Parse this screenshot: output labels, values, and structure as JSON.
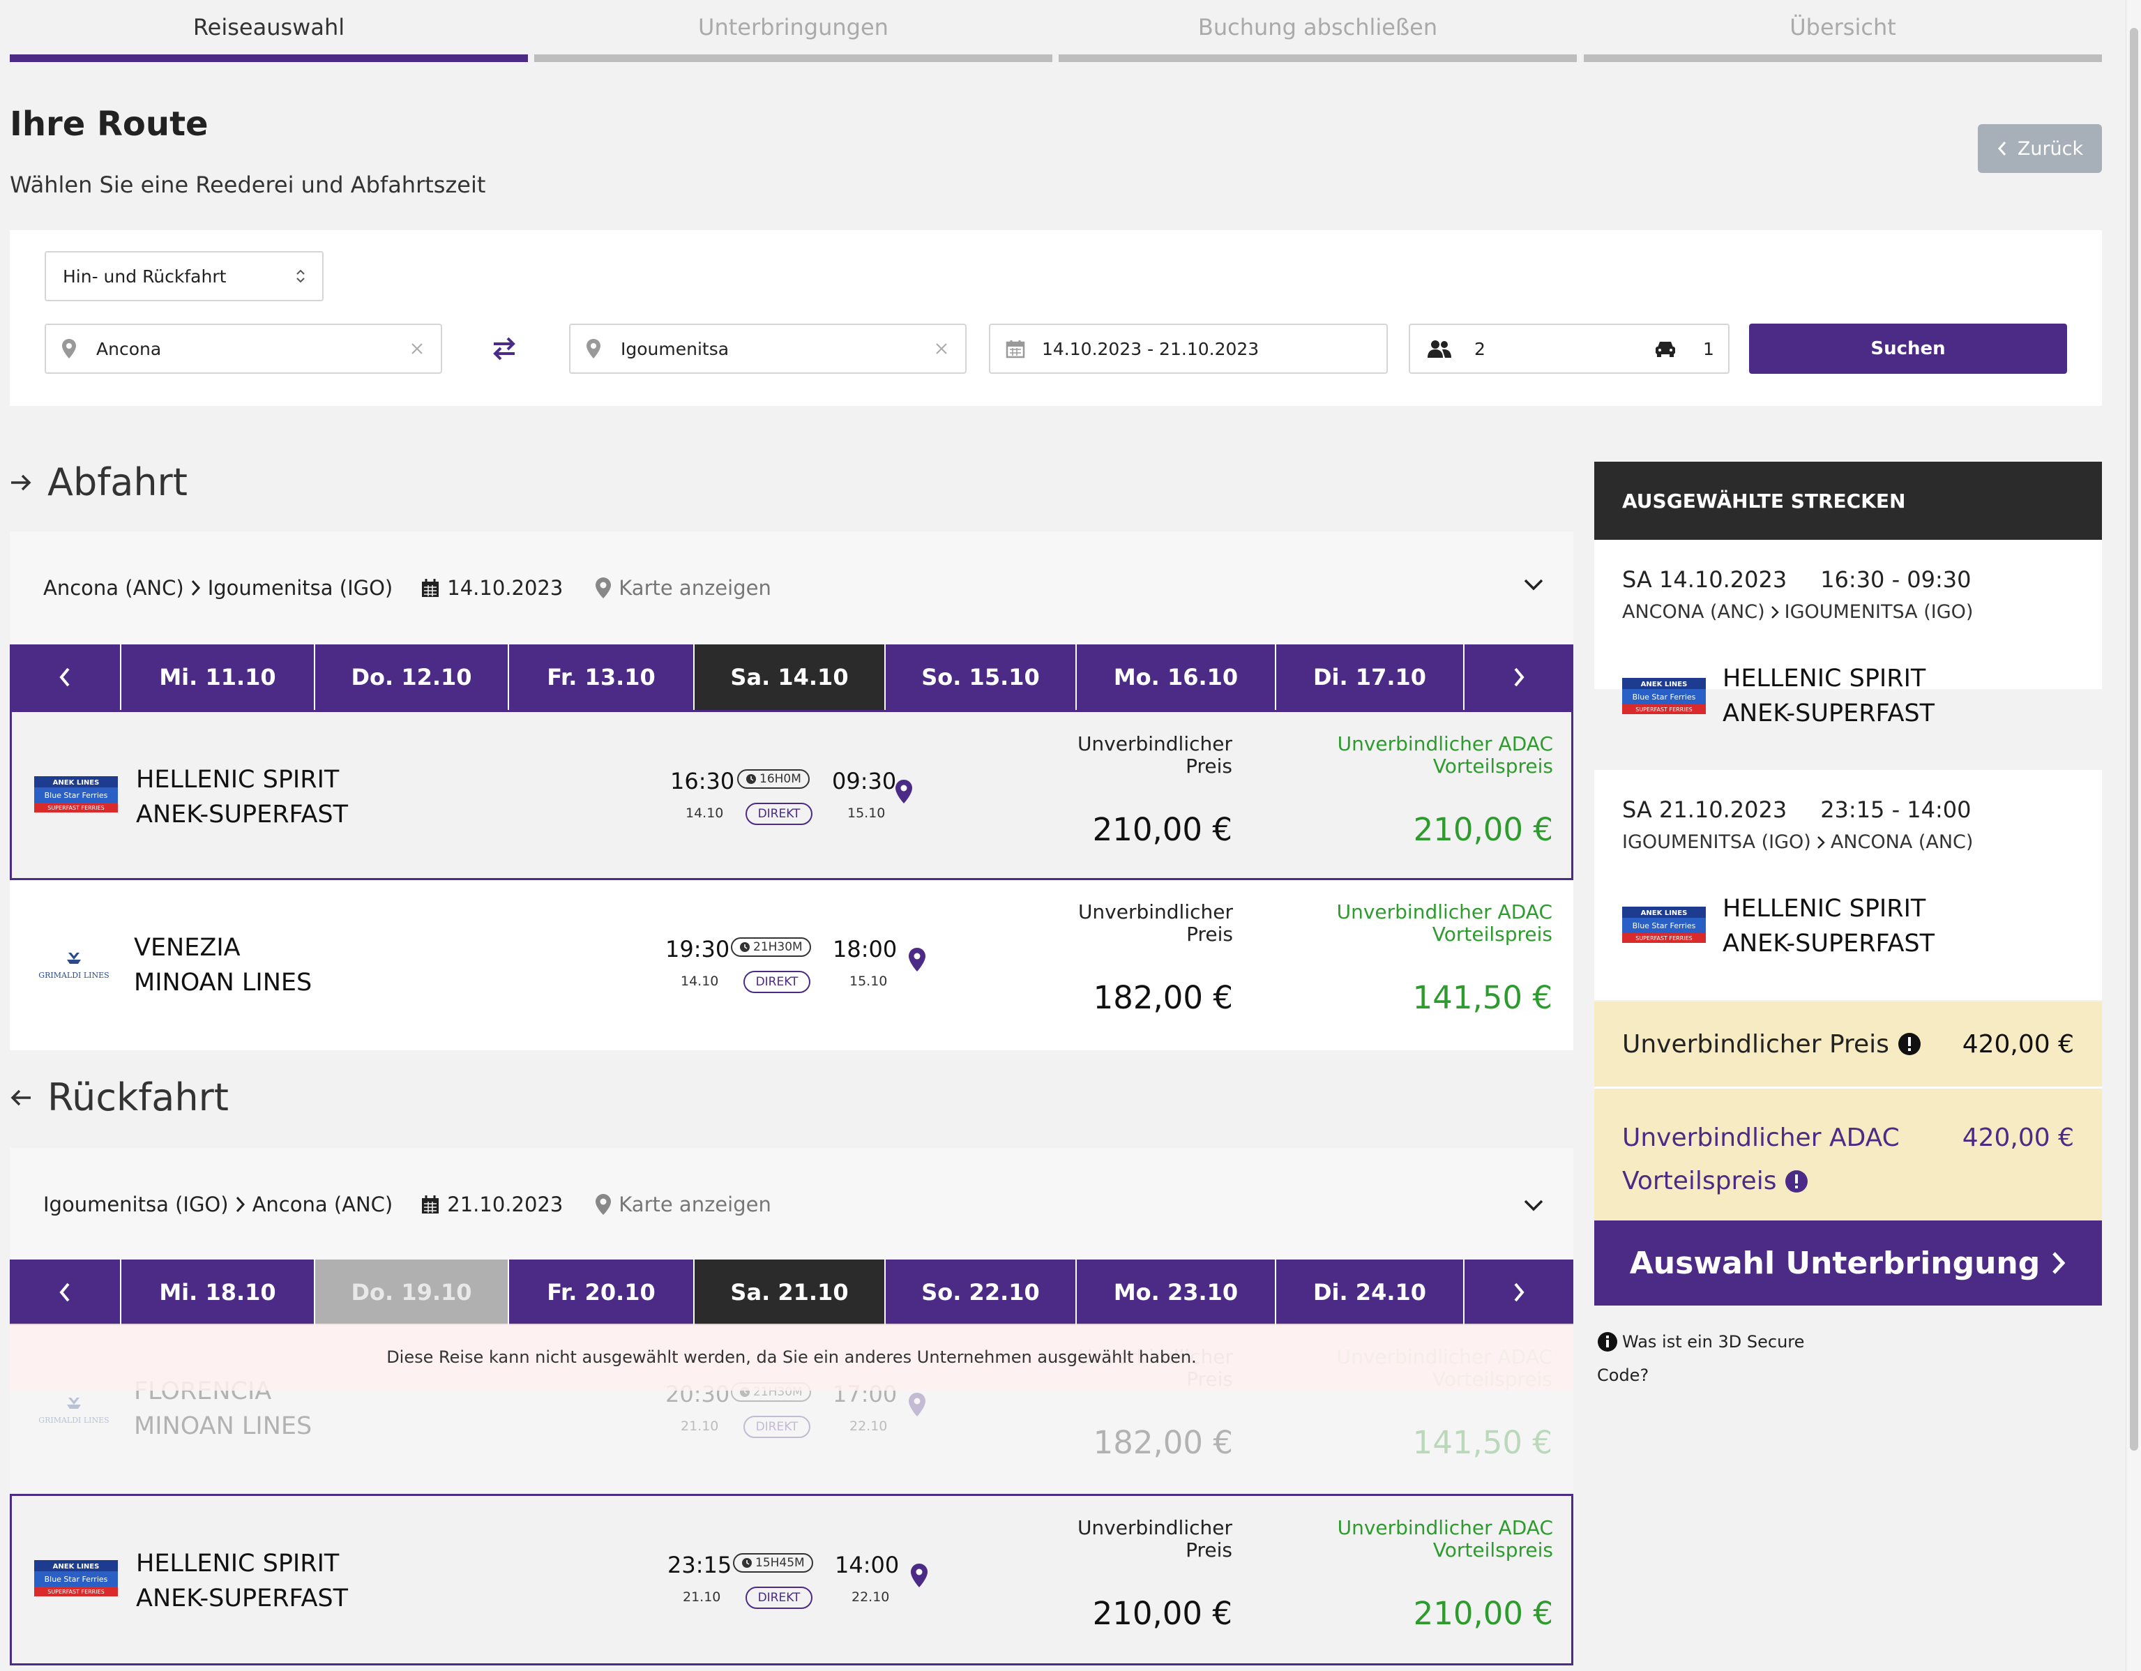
{
  "steps": [
    {
      "label": "Reiseauswahl",
      "active": true
    },
    {
      "label": "Unterbringungen",
      "active": false
    },
    {
      "label": "Buchung abschließen",
      "active": false
    },
    {
      "label": "Übersicht",
      "active": false
    }
  ],
  "page": {
    "title": "Ihre Route",
    "subtitle": "Wählen Sie eine Reederei und Abfahrtszeit",
    "back_label": "Zurück"
  },
  "search": {
    "trip_type": "Hin- und Rückfahrt",
    "from": "Ancona",
    "to": "Igoumenitsa",
    "dates": "14.10.2023 - 21.10.2023",
    "passengers": "2",
    "vehicles": "1",
    "submit_label": "Suchen"
  },
  "outbound": {
    "heading": "Abfahrt",
    "from": "Ancona (ANC)",
    "to": "Igoumenitsa (IGO)",
    "date": "14.10.2023",
    "map_label": "Karte anzeigen",
    "days": [
      {
        "label": "Mi. 11.10",
        "state": "normal"
      },
      {
        "label": "Do. 12.10",
        "state": "normal"
      },
      {
        "label": "Fr. 13.10",
        "state": "normal"
      },
      {
        "label": "Sa. 14.10",
        "state": "selected"
      },
      {
        "label": "So. 15.10",
        "state": "normal"
      },
      {
        "label": "Mo. 16.10",
        "state": "normal"
      },
      {
        "label": "Di. 17.10",
        "state": "normal"
      }
    ],
    "sailings": [
      {
        "ship": "HELLENIC SPIRIT",
        "operator": "ANEK-SUPERFAST",
        "dep": "16:30",
        "dep_date": "14.10",
        "duration": "16H0M",
        "arr": "09:30",
        "arr_date": "15.10",
        "type": "DIREKT",
        "price_label": "Unverbindlicher Preis",
        "price": "210,00 €",
        "adac_label": "Unverbindlicher ADAC Vorteilspreis",
        "adac_price": "210,00 €",
        "selected": true,
        "logo": "anek-blue-star-logo"
      },
      {
        "ship": "VENEZIA",
        "operator": "MINOAN LINES",
        "dep": "19:30",
        "dep_date": "14.10",
        "duration": "21H30M",
        "arr": "18:00",
        "arr_date": "15.10",
        "type": "DIREKT",
        "price_label": "Unverbindlicher Preis",
        "price": "182,00 €",
        "adac_label": "Unverbindlicher ADAC Vorteilspreis",
        "adac_price": "141,50 €",
        "selected": false,
        "logo": "grimaldi-lines-logo"
      }
    ]
  },
  "return": {
    "heading": "Rückfahrt",
    "from": "Igoumenitsa (IGO)",
    "to": "Ancona (ANC)",
    "date": "21.10.2023",
    "map_label": "Karte anzeigen",
    "days": [
      {
        "label": "Mi. 18.10",
        "state": "normal"
      },
      {
        "label": "Do. 19.10",
        "state": "disabled"
      },
      {
        "label": "Fr. 20.10",
        "state": "normal"
      },
      {
        "label": "Sa. 21.10",
        "state": "selected"
      },
      {
        "label": "So. 22.10",
        "state": "normal"
      },
      {
        "label": "Mo. 23.10",
        "state": "normal"
      },
      {
        "label": "Di. 24.10",
        "state": "normal"
      }
    ],
    "warning": "Diese Reise kann nicht ausgewählt werden, da Sie ein anderes Unternehmen ausgewählt haben.",
    "sailings": [
      {
        "ship": "FLORENCIA",
        "operator": "MINOAN LINES",
        "dep": "20:30",
        "dep_date": "21.10",
        "duration": "21H30M",
        "arr": "17:00",
        "arr_date": "22.10",
        "type": "DIREKT",
        "price_label": "Unverbindlicher Preis",
        "price": "182,00 €",
        "adac_label": "Unverbindlicher ADAC Vorteilspreis",
        "adac_price": "141,50 €",
        "disabled": true,
        "logo": "grimaldi-lines-logo"
      },
      {
        "ship": "HELLENIC SPIRIT",
        "operator": "ANEK-SUPERFAST",
        "dep": "23:15",
        "dep_date": "21.10",
        "duration": "15H45M",
        "arr": "14:00",
        "arr_date": "22.10",
        "type": "DIREKT",
        "price_label": "Unverbindlicher Preis",
        "price": "210,00 €",
        "adac_label": "Unverbindlicher ADAC Vorteilspreis",
        "adac_price": "210,00 €",
        "selected": true,
        "logo": "anek-blue-star-logo"
      }
    ]
  },
  "summary": {
    "heading": "AUSGEWÄHLTE STRECKEN",
    "legs": [
      {
        "date": "SA 14.10.2023",
        "time": "16:30 - 09:30",
        "from": "ANCONA (ANC)",
        "to": "IGOUMENITSA (IGO)",
        "ship": "HELLENIC SPIRIT",
        "operator": "ANEK-SUPERFAST"
      },
      {
        "date": "SA 21.10.2023",
        "time": "23:15 - 14:00",
        "from": "IGOUMENITSA (IGO)",
        "to": "ANCONA (ANC)",
        "ship": "HELLENIC SPIRIT",
        "operator": "ANEK-SUPERFAST"
      }
    ],
    "price_label": "Unverbindlicher Preis",
    "price": "420,00 €",
    "adac_label_1": "Unverbindlicher ADAC",
    "adac_label_2": "Vorteilspreis",
    "adac_price": "420,00 €",
    "cta_label": "Auswahl Unterbringung",
    "help_text_1": "Was ist ein 3D Secure",
    "help_text_2": "Code?"
  },
  "colors": {
    "brand": "#4b2b86",
    "green": "#2e9b2e",
    "dark": "#2b2b2b",
    "summary_bg": "#f7ebc4"
  }
}
